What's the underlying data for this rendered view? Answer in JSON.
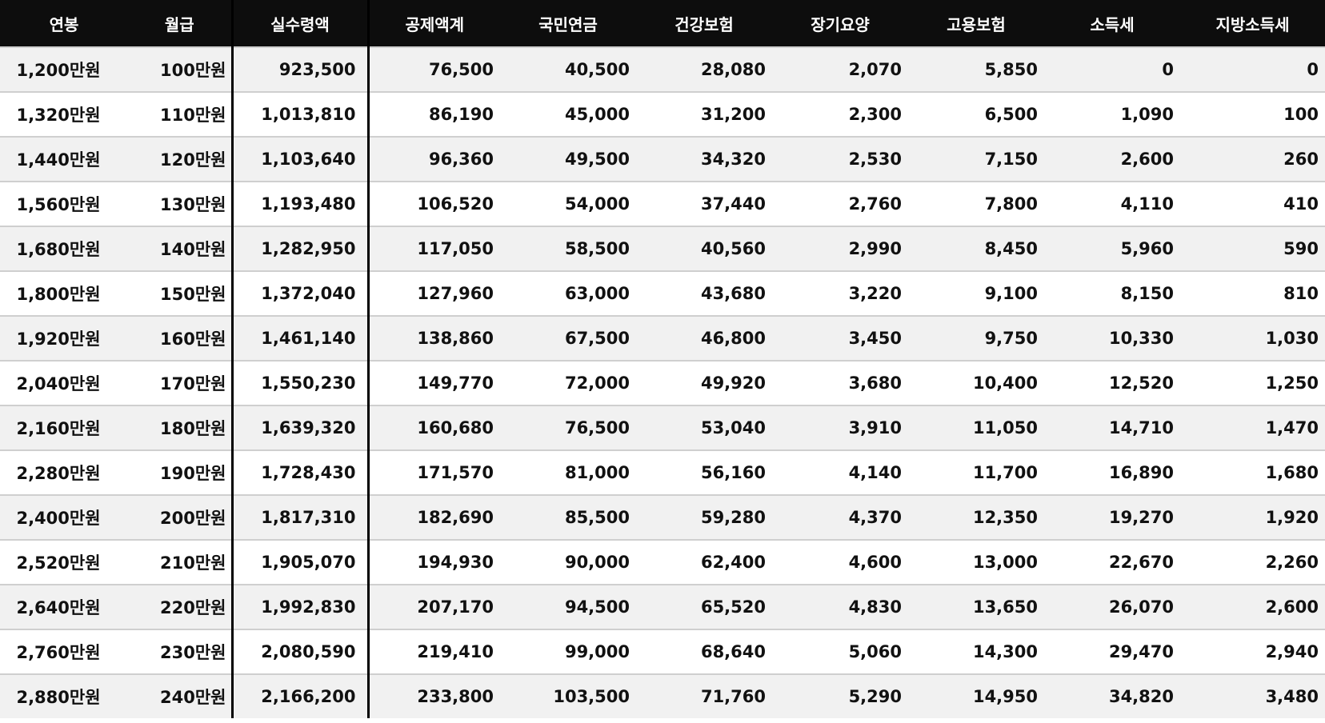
{
  "table": {
    "headers": [
      "연봉",
      "월급",
      "실수령액",
      "공제액계",
      "국민연금",
      "건강보험",
      "장기요양",
      "고용보험",
      "소득세",
      "지방소득세"
    ],
    "rows": [
      [
        "1,200만원",
        "100만원",
        "923,500",
        "76,500",
        "40,500",
        "28,080",
        "2,070",
        "5,850",
        "0",
        "0"
      ],
      [
        "1,320만원",
        "110만원",
        "1,013,810",
        "86,190",
        "45,000",
        "31,200",
        "2,300",
        "6,500",
        "1,090",
        "100"
      ],
      [
        "1,440만원",
        "120만원",
        "1,103,640",
        "96,360",
        "49,500",
        "34,320",
        "2,530",
        "7,150",
        "2,600",
        "260"
      ],
      [
        "1,560만원",
        "130만원",
        "1,193,480",
        "106,520",
        "54,000",
        "37,440",
        "2,760",
        "7,800",
        "4,110",
        "410"
      ],
      [
        "1,680만원",
        "140만원",
        "1,282,950",
        "117,050",
        "58,500",
        "40,560",
        "2,990",
        "8,450",
        "5,960",
        "590"
      ],
      [
        "1,800만원",
        "150만원",
        "1,372,040",
        "127,960",
        "63,000",
        "43,680",
        "3,220",
        "9,100",
        "8,150",
        "810"
      ],
      [
        "1,920만원",
        "160만원",
        "1,461,140",
        "138,860",
        "67,500",
        "46,800",
        "3,450",
        "9,750",
        "10,330",
        "1,030"
      ],
      [
        "2,040만원",
        "170만원",
        "1,550,230",
        "149,770",
        "72,000",
        "49,920",
        "3,680",
        "10,400",
        "12,520",
        "1,250"
      ],
      [
        "2,160만원",
        "180만원",
        "1,639,320",
        "160,680",
        "76,500",
        "53,040",
        "3,910",
        "11,050",
        "14,710",
        "1,470"
      ],
      [
        "2,280만원",
        "190만원",
        "1,728,430",
        "171,570",
        "81,000",
        "56,160",
        "4,140",
        "11,700",
        "16,890",
        "1,680"
      ],
      [
        "2,400만원",
        "200만원",
        "1,817,310",
        "182,690",
        "85,500",
        "59,280",
        "4,370",
        "12,350",
        "19,270",
        "1,920"
      ],
      [
        "2,520만원",
        "210만원",
        "1,905,070",
        "194,930",
        "90,000",
        "62,400",
        "4,600",
        "13,000",
        "22,670",
        "2,260"
      ],
      [
        "2,640만원",
        "220만원",
        "1,992,830",
        "207,170",
        "94,500",
        "65,520",
        "4,830",
        "13,650",
        "26,070",
        "2,600"
      ],
      [
        "2,760만원",
        "230만원",
        "2,080,590",
        "219,410",
        "99,000",
        "68,640",
        "5,060",
        "14,300",
        "29,470",
        "2,940"
      ],
      [
        "2,880만원",
        "240만원",
        "2,166,200",
        "233,800",
        "103,500",
        "71,760",
        "5,290",
        "14,950",
        "34,820",
        "3,480"
      ]
    ]
  },
  "colors": {
    "header_bg": "#0d0d0d",
    "header_text": "#ffffff",
    "row_alt_bg": "#f1f1f1",
    "row_bg": "#ffffff",
    "divider": "#000000"
  }
}
